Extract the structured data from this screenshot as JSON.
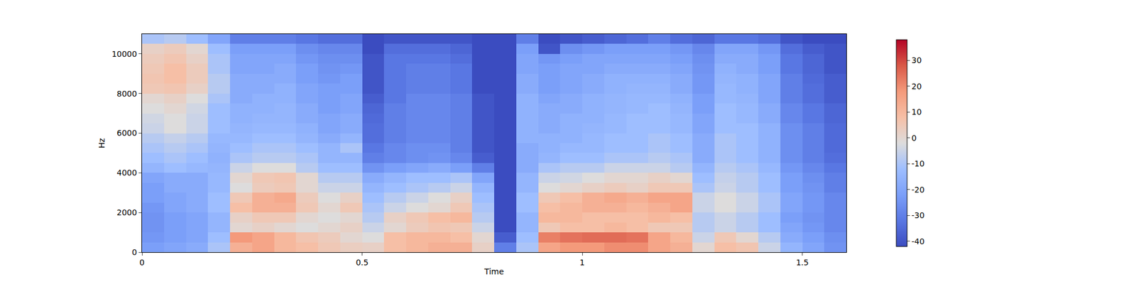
{
  "chart_data": {
    "type": "heatmap",
    "xlabel": "Time",
    "ylabel": "Hz",
    "x": [
      0.025,
      0.075,
      0.125,
      0.175,
      0.225,
      0.275,
      0.325,
      0.375,
      0.425,
      0.475,
      0.525,
      0.575,
      0.625,
      0.675,
      0.725,
      0.775,
      0.825,
      0.875,
      0.925,
      0.975,
      1.025,
      1.075,
      1.125,
      1.175,
      1.225,
      1.275,
      1.325,
      1.375,
      1.425,
      1.475,
      1.525,
      1.575
    ],
    "y": [
      250,
      750,
      1250,
      1750,
      2250,
      2750,
      3250,
      3750,
      4250,
      4750,
      5250,
      5750,
      6250,
      6750,
      7250,
      7750,
      8250,
      8750,
      9250,
      9750,
      10250,
      10750
    ],
    "z": [
      [
        -22,
        -20,
        -18,
        -10,
        12,
        15,
        10,
        8,
        5,
        3,
        2,
        8,
        10,
        12,
        12,
        2,
        -30,
        -10,
        15,
        18,
        18,
        20,
        20,
        15,
        12,
        0,
        8,
        6,
        -5,
        -15,
        -20,
        -25
      ],
      [
        -24,
        -22,
        -20,
        -12,
        18,
        15,
        10,
        6,
        4,
        0,
        -2,
        8,
        10,
        10,
        8,
        0,
        -38,
        -12,
        22,
        24,
        25,
        25,
        24,
        15,
        10,
        -5,
        5,
        0,
        -8,
        -18,
        -22,
        -26
      ],
      [
        -25,
        -22,
        -20,
        -15,
        0,
        2,
        0,
        -2,
        0,
        2,
        -5,
        0,
        4,
        6,
        5,
        -5,
        -42,
        -15,
        5,
        8,
        8,
        10,
        8,
        5,
        5,
        -8,
        -5,
        -8,
        -12,
        -20,
        -24,
        -28
      ],
      [
        -25,
        -22,
        -20,
        -15,
        2,
        5,
        5,
        0,
        -2,
        0,
        -8,
        2,
        5,
        8,
        10,
        -8,
        -42,
        -15,
        10,
        10,
        8,
        8,
        8,
        10,
        8,
        -8,
        -5,
        -8,
        -12,
        -22,
        -25,
        -28
      ],
      [
        -24,
        -20,
        -18,
        -12,
        8,
        12,
        12,
        5,
        0,
        5,
        -10,
        -5,
        -2,
        0,
        5,
        -10,
        -42,
        -12,
        8,
        10,
        12,
        12,
        10,
        12,
        15,
        -5,
        -2,
        -5,
        -10,
        -20,
        -24,
        -28
      ],
      [
        -22,
        -20,
        -18,
        -12,
        5,
        12,
        14,
        4,
        -2,
        2,
        -12,
        -8,
        -5,
        -2,
        2,
        -12,
        -42,
        -12,
        5,
        8,
        12,
        14,
        12,
        15,
        15,
        -5,
        -2,
        -5,
        -10,
        -20,
        -24,
        -28
      ],
      [
        -22,
        -18,
        -18,
        -14,
        -2,
        4,
        5,
        0,
        -5,
        -5,
        -15,
        -12,
        -10,
        -8,
        -5,
        -15,
        -42,
        -15,
        -2,
        0,
        2,
        4,
        2,
        5,
        5,
        -10,
        -5,
        -8,
        -12,
        -22,
        -25,
        -30
      ],
      [
        -20,
        -18,
        -18,
        -14,
        0,
        5,
        6,
        0,
        -8,
        -8,
        -18,
        -15,
        -12,
        -12,
        -10,
        -20,
        -42,
        -15,
        -5,
        -4,
        -2,
        0,
        0,
        2,
        0,
        -12,
        -6,
        -8,
        -12,
        -22,
        -26,
        -30
      ],
      [
        -15,
        -12,
        -14,
        -15,
        -5,
        -2,
        -2,
        -8,
        -12,
        -12,
        -25,
        -22,
        -20,
        -18,
        -22,
        -30,
        -42,
        -18,
        -10,
        -8,
        -8,
        -5,
        -5,
        -5,
        -8,
        -15,
        -8,
        -10,
        -14,
        -24,
        -28,
        -32
      ],
      [
        -12,
        -10,
        -12,
        -16,
        -10,
        -8,
        -8,
        -10,
        -15,
        -15,
        -30,
        -28,
        -26,
        -25,
        -28,
        -38,
        -42,
        -18,
        -15,
        -12,
        -12,
        -10,
        -10,
        -8,
        -10,
        -18,
        -10,
        -12,
        -16,
        -26,
        -30,
        -34
      ],
      [
        -10,
        -8,
        -10,
        -15,
        -12,
        -10,
        -10,
        -12,
        -15,
        -10,
        -32,
        -28,
        -26,
        -26,
        -30,
        -40,
        -42,
        -18,
        -16,
        -14,
        -14,
        -12,
        -12,
        -10,
        -12,
        -18,
        -10,
        -12,
        -16,
        -26,
        -30,
        -35
      ],
      [
        -8,
        -6,
        -8,
        -14,
        -14,
        -12,
        -12,
        -15,
        -18,
        -15,
        -34,
        -30,
        -28,
        -28,
        -30,
        -40,
        -42,
        -16,
        -16,
        -16,
        -14,
        -12,
        -12,
        -10,
        -12,
        -18,
        -10,
        -12,
        -16,
        -26,
        -30,
        -35
      ],
      [
        -5,
        -2,
        -5,
        -12,
        -15,
        -14,
        -14,
        -16,
        -20,
        -18,
        -34,
        -30,
        -28,
        -28,
        -30,
        -40,
        -42,
        -16,
        -18,
        -16,
        -15,
        -14,
        -12,
        -12,
        -14,
        -20,
        -12,
        -12,
        -16,
        -26,
        -30,
        -35
      ],
      [
        -4,
        -2,
        -5,
        -12,
        -16,
        -15,
        -15,
        -18,
        -20,
        -18,
        -35,
        -30,
        -28,
        -28,
        -30,
        -40,
        -42,
        -16,
        -18,
        -16,
        -16,
        -14,
        -12,
        -12,
        -14,
        -20,
        -12,
        -14,
        -18,
        -28,
        -32,
        -36
      ],
      [
        -2,
        0,
        -4,
        -12,
        -16,
        -16,
        -15,
        -18,
        -22,
        -20,
        -36,
        -30,
        -28,
        -28,
        -30,
        -40,
        -42,
        -16,
        -18,
        -18,
        -16,
        -15,
        -14,
        -12,
        -15,
        -22,
        -12,
        -14,
        -18,
        -28,
        -32,
        -36
      ],
      [
        0,
        2,
        -2,
        -10,
        -18,
        -16,
        -16,
        -20,
        -22,
        -20,
        -38,
        -32,
        -28,
        -28,
        -30,
        -40,
        -42,
        -16,
        -20,
        -18,
        -16,
        -15,
        -14,
        -14,
        -16,
        -22,
        -14,
        -15,
        -20,
        -30,
        -34,
        -38
      ],
      [
        5,
        6,
        2,
        -8,
        -18,
        -18,
        -16,
        -20,
        -22,
        -22,
        -40,
        -32,
        -30,
        -30,
        -32,
        -42,
        -42,
        -18,
        -22,
        -20,
        -18,
        -16,
        -15,
        -15,
        -18,
        -24,
        -14,
        -16,
        -20,
        -30,
        -34,
        -38
      ],
      [
        6,
        8,
        4,
        -8,
        -18,
        -18,
        -18,
        -22,
        -24,
        -22,
        -40,
        -32,
        -30,
        -30,
        -32,
        -42,
        -42,
        -18,
        -22,
        -20,
        -18,
        -16,
        -16,
        -16,
        -18,
        -24,
        -15,
        -16,
        -20,
        -30,
        -35,
        -38
      ],
      [
        5,
        8,
        4,
        -10,
        -20,
        -20,
        -18,
        -22,
        -25,
        -24,
        -40,
        -32,
        -30,
        -30,
        -32,
        -42,
        -42,
        -20,
        -22,
        -20,
        -20,
        -18,
        -18,
        -18,
        -20,
        -25,
        -16,
        -18,
        -22,
        -32,
        -36,
        -40
      ],
      [
        4,
        6,
        2,
        -10,
        -20,
        -20,
        -20,
        -24,
        -26,
        -26,
        -40,
        -32,
        -32,
        -32,
        -34,
        -42,
        -42,
        -20,
        -24,
        -22,
        -20,
        -20,
        -20,
        -20,
        -22,
        -26,
        -18,
        -18,
        -22,
        -32,
        -36,
        -40
      ],
      [
        2,
        4,
        0,
        -12,
        -22,
        -22,
        -22,
        -26,
        -28,
        -28,
        -42,
        -34,
        -34,
        -34,
        -36,
        -42,
        -42,
        -22,
        -40,
        -26,
        -24,
        -22,
        -22,
        -22,
        -24,
        -28,
        -20,
        -20,
        -24,
        -34,
        -38,
        -40
      ],
      [
        -10,
        -8,
        -12,
        -20,
        -30,
        -30,
        -30,
        -32,
        -34,
        -34,
        -42,
        -40,
        -40,
        -40,
        -40,
        -42,
        -42,
        -30,
        -42,
        -40,
        -38,
        -36,
        -34,
        -30,
        -34,
        -36,
        -32,
        -32,
        -34,
        -40,
        -42,
        -42
      ]
    ],
    "xlim": [
      0,
      1.6
    ],
    "xticks": [
      0,
      0.5,
      1,
      1.5
    ],
    "ylim": [
      0,
      11000
    ],
    "yticks": [
      0,
      2000,
      4000,
      6000,
      8000,
      10000
    ],
    "zlim": [
      -42,
      38
    ],
    "colorbar_ticks": [
      -40,
      -30,
      -20,
      -10,
      0,
      10,
      20,
      30
    ]
  }
}
